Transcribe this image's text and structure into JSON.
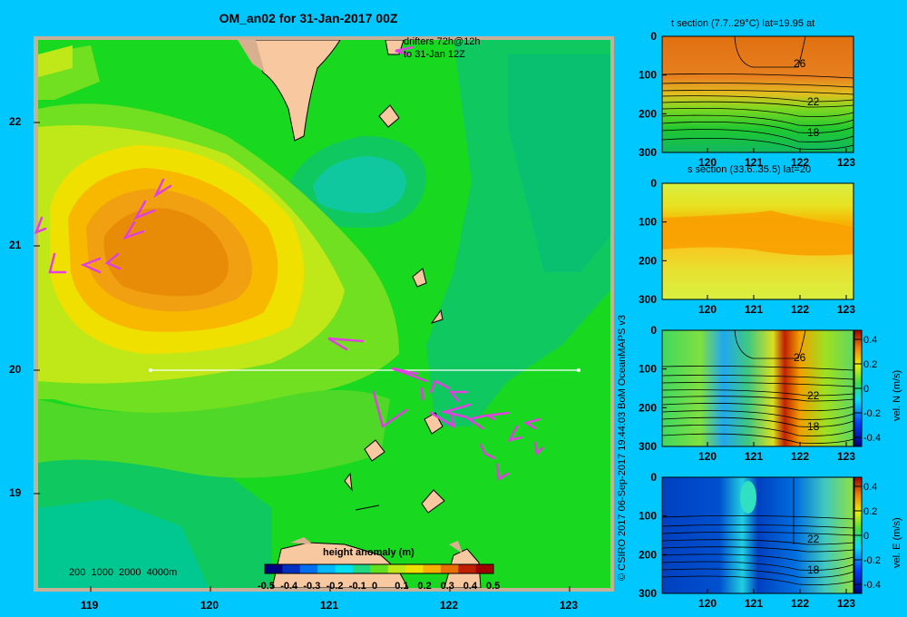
{
  "title": "OM_an02 for 31-Jan-2017 00Z",
  "map": {
    "x_ticks": [
      "119",
      "120",
      "121",
      "122",
      "123"
    ],
    "y_ticks": [
      "22",
      "21",
      "20",
      "19"
    ],
    "drifters_label_1": "drifters 72h@12h",
    "drifters_label_2": "to 31-Jan 12Z",
    "depth_legend": "200  1000  2000  4000m",
    "colorbar_title": "height anomaly (m)",
    "colorbar_ticks": [
      "-0.5",
      "-0.4",
      "-0.3",
      "-0.2",
      "-0.1",
      "0",
      "0.1",
      "0.2",
      "0.3",
      "0.4",
      "0.5"
    ]
  },
  "sections": [
    {
      "title": "t section (7.7..29°C) lat=19.95 at",
      "contours": [
        "26",
        "22",
        "18"
      ]
    },
    {
      "title": "s section (33.6..35.5) lat=20",
      "contours": []
    },
    {
      "title": "",
      "contours": [
        "26",
        "22",
        "18"
      ],
      "cbar_label": "vel. N (m/s)"
    },
    {
      "title": "",
      "contours": [
        "22",
        "18"
      ],
      "cbar_label": "vel. E (m/s)"
    }
  ],
  "section_x_ticks": [
    "120",
    "121",
    "122",
    "123"
  ],
  "section_y_ticks": [
    "0",
    "100",
    "200",
    "300"
  ],
  "section_cbar_ticks": [
    "0.4",
    "0.2",
    "0",
    "-0.2",
    "-0.4"
  ],
  "credit": "© CSIRO 2017   06-Sep-2017 19:44:03 BoM OceanMAPS v3",
  "colors": {
    "background": "#00c8ff",
    "drifter": "#e040e0",
    "land": "#f8c8a0"
  },
  "chart_data": {
    "type": "heatmap",
    "variable": "height anomaly (m)",
    "x_range": [
      118.5,
      123.5
    ],
    "y_range": [
      18.25,
      22.7
    ],
    "colorbar_range": [
      -0.5,
      0.5
    ],
    "features": {
      "high_anomaly_center": {
        "lon": 119.7,
        "lat": 20.9,
        "value": 0.3
      },
      "low_anomaly_center": {
        "lon": 121.3,
        "lat": 21.5,
        "value": -0.1
      },
      "section_line": {
        "lat": 20.0,
        "lon_start": 119.5,
        "lon_end": 123.2
      }
    }
  }
}
